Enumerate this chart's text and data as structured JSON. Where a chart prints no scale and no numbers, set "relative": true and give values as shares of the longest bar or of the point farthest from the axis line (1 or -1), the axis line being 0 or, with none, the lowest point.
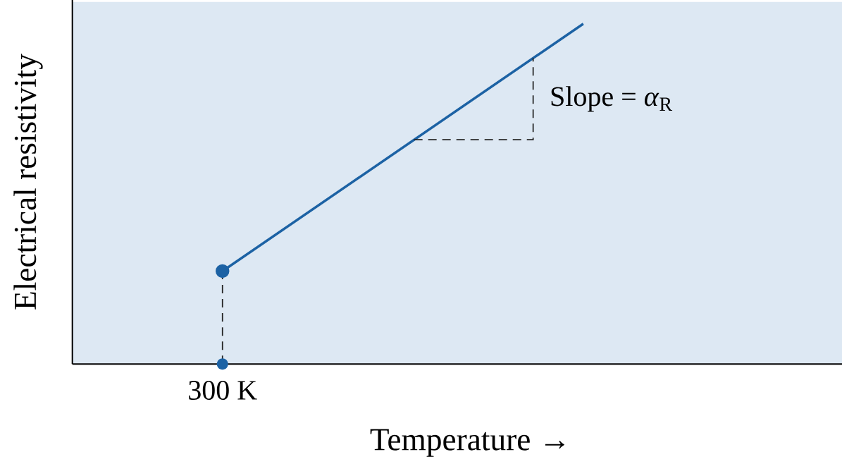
{
  "chart_data": {
    "type": "line",
    "relative": true,
    "xlabel": "Temperature →",
    "ylabel": "Electrical resistivity",
    "categories": [
      null,
      null
    ],
    "series": [
      {
        "color": "#1c62a4",
        "values": [
          0.273,
          1
        ],
        "marker": "circle",
        "line_style": "solid"
      }
    ],
    "annotations": [
      "Slope = *α*$_{R}$",
      "300 K"
    ]
  }
}
